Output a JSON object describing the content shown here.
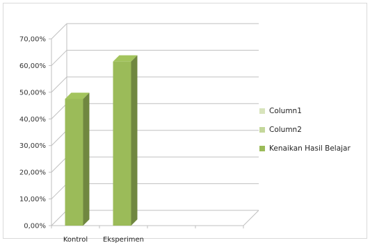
{
  "chart_data": {
    "type": "bar",
    "categories": [
      "Kontrol",
      "Eksperimen"
    ],
    "series": [
      {
        "name": "Column1",
        "values": [
          null,
          null
        ],
        "color": "#d8e4bc"
      },
      {
        "name": "Column2",
        "values": [
          null,
          null
        ],
        "color": "#c4d79b"
      },
      {
        "name": "Kenaikan Hasil Belajar",
        "values": [
          47.5,
          61.5
        ],
        "color": "#9bbb59"
      }
    ],
    "y_ticks": [
      "0,00%",
      "10,00%",
      "20,00%",
      "30,00%",
      "40,00%",
      "50,00%",
      "60,00%",
      "70,00%"
    ],
    "ylim": [
      0,
      70
    ],
    "ylabel": "",
    "xlabel": "",
    "title": "",
    "legend_position": "right",
    "grid": true,
    "style": "3d-column"
  }
}
